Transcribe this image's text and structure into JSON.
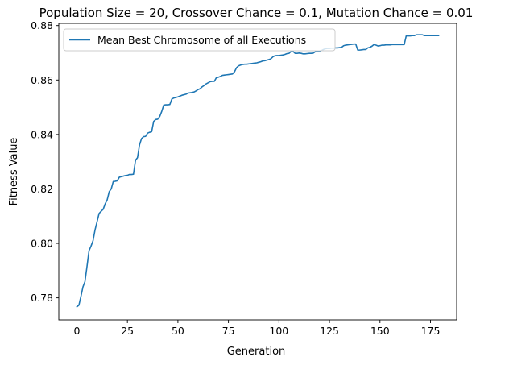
{
  "chart_data": {
    "type": "line",
    "title": "Population Size = 20, Crossover Chance = 0.1, Mutation Chance = 0.01",
    "xlabel": "Generation",
    "ylabel": "Fitness Value",
    "xlim": [
      -8.95,
      187.95
    ],
    "ylim": [
      0.7719,
      0.8808
    ],
    "xticks": [
      0,
      25,
      50,
      75,
      100,
      125,
      150,
      175
    ],
    "yticks": [
      0.78,
      0.8,
      0.82,
      0.84,
      0.86,
      0.88
    ],
    "xtick_labels": [
      "0",
      "25",
      "50",
      "75",
      "100",
      "125",
      "150",
      "175"
    ],
    "ytick_labels": [
      "0.78",
      "0.80",
      "0.82",
      "0.84",
      "0.86",
      "0.88"
    ],
    "grid": false,
    "legend_position": "top-left",
    "series": [
      {
        "name": "Mean Best Chromosome of all Executions",
        "color": "#1f77b4",
        "points": [
          [
            0,
            0.7767
          ],
          [
            1,
            0.7773
          ],
          [
            2,
            0.7805
          ],
          [
            3,
            0.784
          ],
          [
            4,
            0.786
          ],
          [
            5,
            0.7915
          ],
          [
            6,
            0.7973
          ],
          [
            7,
            0.799
          ],
          [
            8,
            0.801
          ],
          [
            9,
            0.805
          ],
          [
            10,
            0.808
          ],
          [
            11,
            0.811
          ],
          [
            12,
            0.8118
          ],
          [
            13,
            0.8125
          ],
          [
            14,
            0.8145
          ],
          [
            15,
            0.816
          ],
          [
            16,
            0.819
          ],
          [
            17,
            0.82
          ],
          [
            18,
            0.8227
          ],
          [
            19,
            0.8228
          ],
          [
            20,
            0.823
          ],
          [
            21,
            0.8243
          ],
          [
            22,
            0.8245
          ],
          [
            23,
            0.8247
          ],
          [
            24,
            0.8249
          ],
          [
            25,
            0.825
          ],
          [
            26,
            0.8253
          ],
          [
            27,
            0.8253
          ],
          [
            28,
            0.8254
          ],
          [
            29,
            0.8305
          ],
          [
            30,
            0.8315
          ],
          [
            31,
            0.8362
          ],
          [
            32,
            0.8385
          ],
          [
            33,
            0.8392
          ],
          [
            34,
            0.8393
          ],
          [
            35,
            0.8405
          ],
          [
            36,
            0.8408
          ],
          [
            37,
            0.841
          ],
          [
            38,
            0.8448
          ],
          [
            39,
            0.8455
          ],
          [
            40,
            0.8456
          ],
          [
            41,
            0.8466
          ],
          [
            42,
            0.8485
          ],
          [
            43,
            0.8508
          ],
          [
            44,
            0.8509
          ],
          [
            45,
            0.8509
          ],
          [
            46,
            0.851
          ],
          [
            47,
            0.853
          ],
          [
            48,
            0.8534
          ],
          [
            49,
            0.8536
          ],
          [
            50,
            0.8538
          ],
          [
            51,
            0.8541
          ],
          [
            52,
            0.8544
          ],
          [
            53,
            0.8546
          ],
          [
            54,
            0.8548
          ],
          [
            55,
            0.8552
          ],
          [
            56,
            0.8553
          ],
          [
            57,
            0.8554
          ],
          [
            58,
            0.8556
          ],
          [
            59,
            0.856
          ],
          [
            60,
            0.8565
          ],
          [
            61,
            0.8568
          ],
          [
            62,
            0.8575
          ],
          [
            63,
            0.858
          ],
          [
            64,
            0.8586
          ],
          [
            65,
            0.859
          ],
          [
            66,
            0.8594
          ],
          [
            67,
            0.8595
          ],
          [
            68,
            0.8595
          ],
          [
            69,
            0.8608
          ],
          [
            70,
            0.861
          ],
          [
            71,
            0.8613
          ],
          [
            72,
            0.8617
          ],
          [
            73,
            0.8618
          ],
          [
            74,
            0.8619
          ],
          [
            75,
            0.862
          ],
          [
            76,
            0.8621
          ],
          [
            77,
            0.8622
          ],
          [
            78,
            0.863
          ],
          [
            79,
            0.8645
          ],
          [
            80,
            0.8652
          ],
          [
            81,
            0.8655
          ],
          [
            82,
            0.8657
          ],
          [
            83,
            0.8658
          ],
          [
            84,
            0.8658
          ],
          [
            85,
            0.8659
          ],
          [
            86,
            0.866
          ],
          [
            87,
            0.8661
          ],
          [
            88,
            0.8662
          ],
          [
            89,
            0.8663
          ],
          [
            90,
            0.8665
          ],
          [
            91,
            0.8667
          ],
          [
            92,
            0.867
          ],
          [
            93,
            0.8671
          ],
          [
            94,
            0.8673
          ],
          [
            95,
            0.8675
          ],
          [
            96,
            0.8678
          ],
          [
            97,
            0.8685
          ],
          [
            98,
            0.8689
          ],
          [
            99,
            0.869
          ],
          [
            100,
            0.869
          ],
          [
            101,
            0.8691
          ],
          [
            102,
            0.8692
          ],
          [
            103,
            0.8694
          ],
          [
            104,
            0.8697
          ],
          [
            105,
            0.8698
          ],
          [
            106,
            0.8705
          ],
          [
            107,
            0.8705
          ],
          [
            108,
            0.8698
          ],
          [
            109,
            0.8698
          ],
          [
            110,
            0.8699
          ],
          [
            111,
            0.8698
          ],
          [
            112,
            0.8696
          ],
          [
            113,
            0.8696
          ],
          [
            114,
            0.8697
          ],
          [
            115,
            0.8698
          ],
          [
            116,
            0.8698
          ],
          [
            117,
            0.8699
          ],
          [
            118,
            0.8704
          ],
          [
            119,
            0.8704
          ],
          [
            120,
            0.8706
          ],
          [
            121,
            0.8708
          ],
          [
            122,
            0.8712
          ],
          [
            123,
            0.8715
          ],
          [
            124,
            0.8716
          ],
          [
            125,
            0.8716
          ],
          [
            126,
            0.8717
          ],
          [
            127,
            0.8717
          ],
          [
            128,
            0.8718
          ],
          [
            129,
            0.8718
          ],
          [
            130,
            0.8719
          ],
          [
            131,
            0.872
          ],
          [
            132,
            0.8726
          ],
          [
            133,
            0.8728
          ],
          [
            134,
            0.8729
          ],
          [
            135,
            0.873
          ],
          [
            136,
            0.8731
          ],
          [
            137,
            0.8732
          ],
          [
            138,
            0.8732
          ],
          [
            139,
            0.871
          ],
          [
            140,
            0.871
          ],
          [
            141,
            0.8711
          ],
          [
            142,
            0.8712
          ],
          [
            143,
            0.8712
          ],
          [
            144,
            0.8718
          ],
          [
            145,
            0.872
          ],
          [
            146,
            0.8724
          ],
          [
            147,
            0.873
          ],
          [
            148,
            0.8728
          ],
          [
            149,
            0.8725
          ],
          [
            150,
            0.8726
          ],
          [
            151,
            0.8728
          ],
          [
            152,
            0.8728
          ],
          [
            153,
            0.8729
          ],
          [
            154,
            0.8729
          ],
          [
            155,
            0.8729
          ],
          [
            156,
            0.873
          ],
          [
            157,
            0.873
          ],
          [
            158,
            0.873
          ],
          [
            159,
            0.873
          ],
          [
            160,
            0.873
          ],
          [
            161,
            0.873
          ],
          [
            162,
            0.873
          ],
          [
            163,
            0.8762
          ],
          [
            164,
            0.8762
          ],
          [
            165,
            0.8762
          ],
          [
            166,
            0.8763
          ],
          [
            167,
            0.8763
          ],
          [
            168,
            0.8766
          ],
          [
            169,
            0.8766
          ],
          [
            170,
            0.8766
          ],
          [
            171,
            0.8766
          ],
          [
            172,
            0.8763
          ],
          [
            173,
            0.8763
          ],
          [
            174,
            0.8763
          ],
          [
            175,
            0.8763
          ],
          [
            176,
            0.8763
          ],
          [
            177,
            0.8763
          ],
          [
            178,
            0.8763
          ],
          [
            179,
            0.8763
          ]
        ]
      }
    ]
  }
}
